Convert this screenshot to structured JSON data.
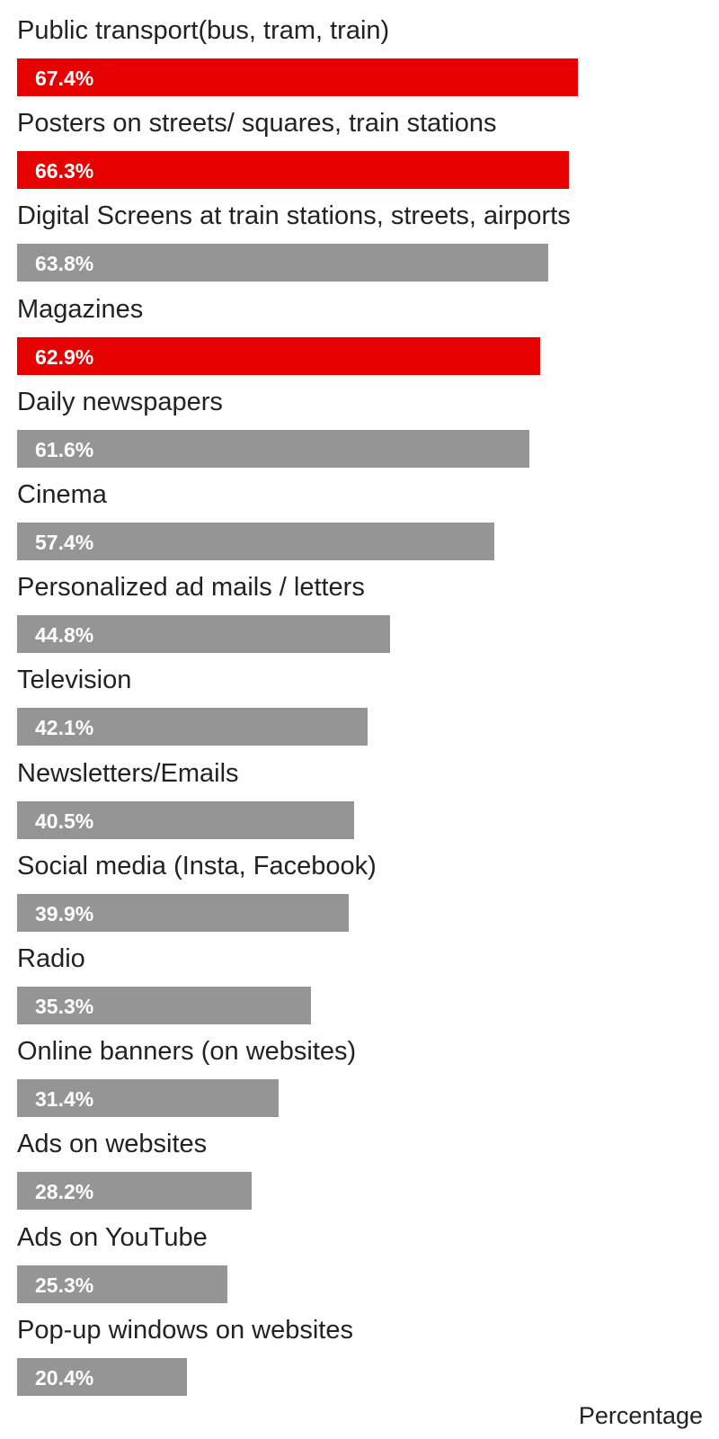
{
  "chart_data": {
    "type": "bar",
    "orientation": "horizontal",
    "xlabel": "Percentage",
    "xlim": [
      0,
      100
    ],
    "grid": false,
    "value_suffix": "%",
    "colors": {
      "highlight": "#e60000",
      "default": "#959595"
    },
    "categories": [
      "Public transport(bus, tram, train)",
      "Posters on streets/ squares, train stations",
      "Digital Screens at train stations, streets, airports",
      "Magazines",
      "Daily newspapers",
      "Cinema",
      "Personalized ad mails / letters",
      "Television",
      "Newsletters/Emails",
      "Social media (Insta, Facebook)",
      "Radio",
      "Online banners (on websites)",
      "Ads on websites",
      "Ads on YouTube",
      "Pop-up windows on websites"
    ],
    "values": [
      67.4,
      66.3,
      63.8,
      62.9,
      61.6,
      57.4,
      44.8,
      42.1,
      40.5,
      39.9,
      35.3,
      31.4,
      28.2,
      25.3,
      20.4
    ],
    "highlighted": [
      true,
      true,
      false,
      true,
      false,
      false,
      false,
      false,
      false,
      false,
      false,
      false,
      false,
      false,
      false
    ]
  }
}
